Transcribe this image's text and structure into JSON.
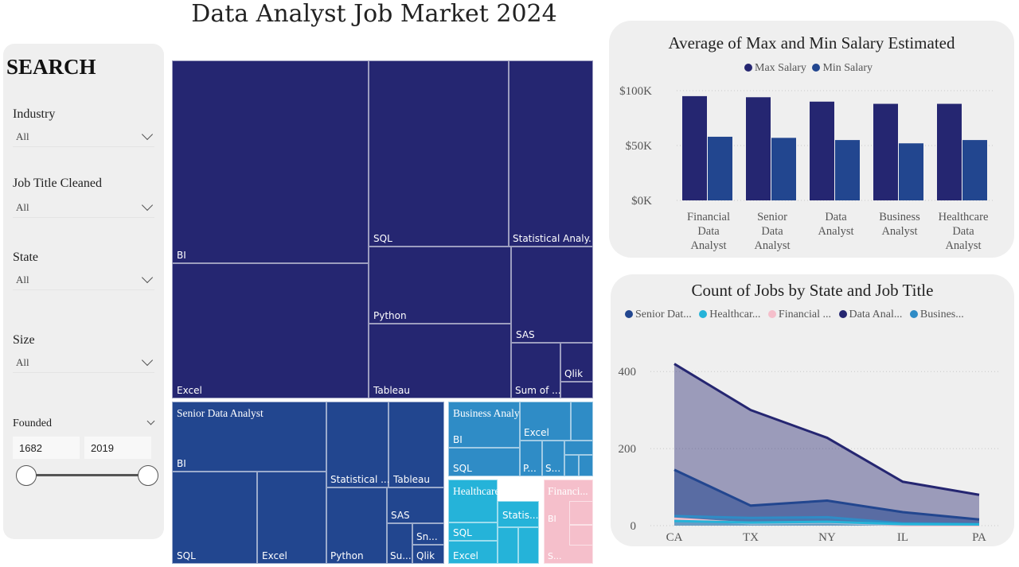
{
  "page_title": "Data Analyst Job Market 2024",
  "search": {
    "heading": "SEARCH",
    "filters": [
      {
        "label": "Industry",
        "value": "All"
      },
      {
        "label": "Job Title Cleaned",
        "value": "All"
      },
      {
        "label": "State",
        "value": "All"
      },
      {
        "label": "Size",
        "value": "All"
      }
    ],
    "founded": {
      "label": "Founded",
      "min": "1682",
      "max": "2019"
    }
  },
  "colors": {
    "data_analyst": "#252671",
    "senior": "#22468f",
    "business": "#2f8cc6",
    "healthcare": "#25b3d9",
    "financial": "#f5bfcb",
    "max_salary": "#252671",
    "min_salary": "#22468f"
  },
  "treemap": {
    "groups": [
      {
        "name": "Data Analyst",
        "tiles": [
          "BI",
          "Excel",
          "SQL",
          "Python",
          "Tableau",
          "Statistical Analy...",
          "SAS",
          "Sum of ...",
          "Qlik"
        ]
      },
      {
        "name": "Senior Data Analyst",
        "tiles": [
          "BI",
          "SQL",
          "Excel",
          "Statistical ...",
          "Tableau",
          "Python",
          "SAS",
          "Su...",
          "Sn...",
          "Qlik"
        ]
      },
      {
        "name": "Business Analyst",
        "tiles": [
          "BI",
          "SQL",
          "Excel",
          "P...",
          "S..."
        ]
      },
      {
        "name": "Healthcare Data...",
        "tiles": [
          "SQL",
          "Excel",
          "Statis..."
        ]
      },
      {
        "name": "Financi...",
        "tiles": [
          "BI",
          "S..."
        ]
      }
    ]
  },
  "chart_data": [
    {
      "type": "bar",
      "title": "Average of Max and Min Salary Estimated",
      "categories": [
        "Financial Data Analyst",
        "Senior Data Analyst",
        "Data Analyst",
        "Business Analyst",
        "Healthcare Data Analyst"
      ],
      "category_lines": [
        [
          "Financial",
          "Data",
          "Analyst"
        ],
        [
          "Senior",
          "Data",
          "Analyst"
        ],
        [
          "Data",
          "Analyst"
        ],
        [
          "Business",
          "Analyst"
        ],
        [
          "Healthcare",
          "Data",
          "Analyst"
        ]
      ],
      "series": [
        {
          "name": "Max Salary",
          "values": [
            95000,
            94000,
            90000,
            88000,
            88000
          ]
        },
        {
          "name": "Min Salary",
          "values": [
            58000,
            57000,
            55000,
            52000,
            55000
          ]
        }
      ],
      "yticks": [
        "$0K",
        "$50K",
        "$100K"
      ],
      "ylim": [
        0,
        100000
      ],
      "grid": true,
      "legend": "top"
    },
    {
      "type": "area",
      "title": "Count of Jobs by State and Job Title",
      "categories": [
        "CA",
        "TX",
        "NY",
        "IL",
        "PA"
      ],
      "series": [
        {
          "name": "Senior Dat...",
          "values": [
            145,
            52,
            65,
            35,
            16
          ]
        },
        {
          "name": "Healthcar...",
          "values": [
            12,
            8,
            10,
            4,
            3
          ]
        },
        {
          "name": "Financial ...",
          "values": [
            18,
            6,
            8,
            1,
            1
          ]
        },
        {
          "name": "Data Anal...",
          "values": [
            420,
            300,
            228,
            114,
            80
          ]
        },
        {
          "name": "Busines...",
          "values": [
            25,
            20,
            22,
            6,
            4
          ]
        }
      ],
      "yticks": [
        "0",
        "200",
        "400"
      ],
      "ylim": [
        0,
        450
      ],
      "grid": true,
      "legend": "top"
    }
  ]
}
